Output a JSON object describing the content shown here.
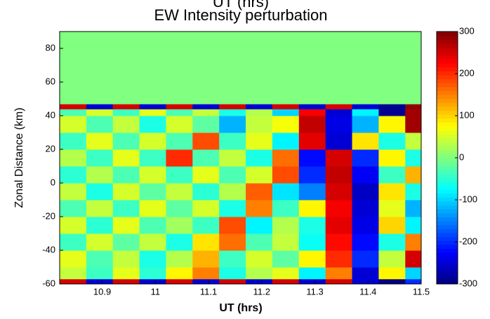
{
  "chart_data": {
    "type": "heatmap",
    "top_label": "UT (hrs)",
    "title": "EW Intensity perturbation",
    "xlabel": "UT (hrs)",
    "ylabel": "Zonal Distance (km)",
    "x_edges": [
      10.82,
      10.87,
      10.92,
      10.97,
      11.02,
      11.07,
      11.12,
      11.17,
      11.22,
      11.27,
      11.32,
      11.37,
      11.42,
      11.47,
      11.5
    ],
    "y_edges": [
      -60,
      -57,
      -50,
      -40,
      -30,
      -20,
      -10,
      0,
      10,
      20,
      30,
      40,
      44,
      47,
      90
    ],
    "z": [
      [
        250,
        -250,
        250,
        -250,
        250,
        -250,
        250,
        -250,
        250,
        -250,
        250,
        -250,
        -300,
        -200
      ],
      [
        40,
        -40,
        60,
        -50,
        80,
        150,
        -60,
        30,
        60,
        -80,
        150,
        -250,
        80,
        -100
      ],
      [
        60,
        -30,
        40,
        -60,
        30,
        120,
        -40,
        50,
        -20,
        80,
        200,
        -200,
        40,
        250
      ],
      [
        -40,
        50,
        -20,
        40,
        -60,
        90,
        160,
        -30,
        40,
        -70,
        220,
        -220,
        -60,
        150
      ],
      [
        50,
        -50,
        60,
        -30,
        20,
        -40,
        180,
        -80,
        30,
        -60,
        240,
        -240,
        100,
        -80
      ],
      [
        -30,
        40,
        -40,
        60,
        -20,
        50,
        -60,
        150,
        -40,
        80,
        230,
        -250,
        60,
        -120
      ],
      [
        40,
        -60,
        50,
        -20,
        40,
        -50,
        30,
        170,
        -90,
        -150,
        250,
        -260,
        90,
        -60
      ],
      [
        -50,
        30,
        -30,
        50,
        -40,
        60,
        -30,
        50,
        180,
        -200,
        260,
        -230,
        -40,
        120
      ],
      [
        30,
        -40,
        60,
        -40,
        200,
        -30,
        40,
        -60,
        160,
        -220,
        250,
        -200,
        80,
        -60
      ],
      [
        -40,
        60,
        -30,
        50,
        -30,
        180,
        -40,
        60,
        -80,
        240,
        -250,
        90,
        -60,
        40
      ],
      [
        50,
        -30,
        40,
        -60,
        50,
        -20,
        -120,
        40,
        70,
        260,
        -240,
        -120,
        80,
        280
      ],
      [
        -30,
        50,
        -40,
        60,
        -30,
        40,
        -60,
        30,
        -100,
        230,
        -250,
        -80,
        -290,
        280
      ],
      [
        250,
        -250,
        250,
        -250,
        250,
        -250,
        250,
        -250,
        250,
        -250,
        250,
        -250,
        -290,
        290
      ],
      [
        0,
        0,
        0,
        0,
        0,
        0,
        0,
        0,
        0,
        0,
        0,
        0,
        0,
        0
      ]
    ],
    "xlim": [
      10.82,
      11.5
    ],
    "ylim": [
      -60,
      90
    ],
    "xticks": [
      10.9,
      11,
      11.1,
      11.2,
      11.3,
      11.4,
      11.5
    ],
    "yticks": [
      -60,
      -40,
      -20,
      0,
      20,
      40,
      60,
      80
    ],
    "clim": [
      -300,
      300
    ],
    "cticks": [
      -300,
      -200,
      -100,
      0,
      100,
      200,
      300
    ],
    "colormap": "jet"
  }
}
